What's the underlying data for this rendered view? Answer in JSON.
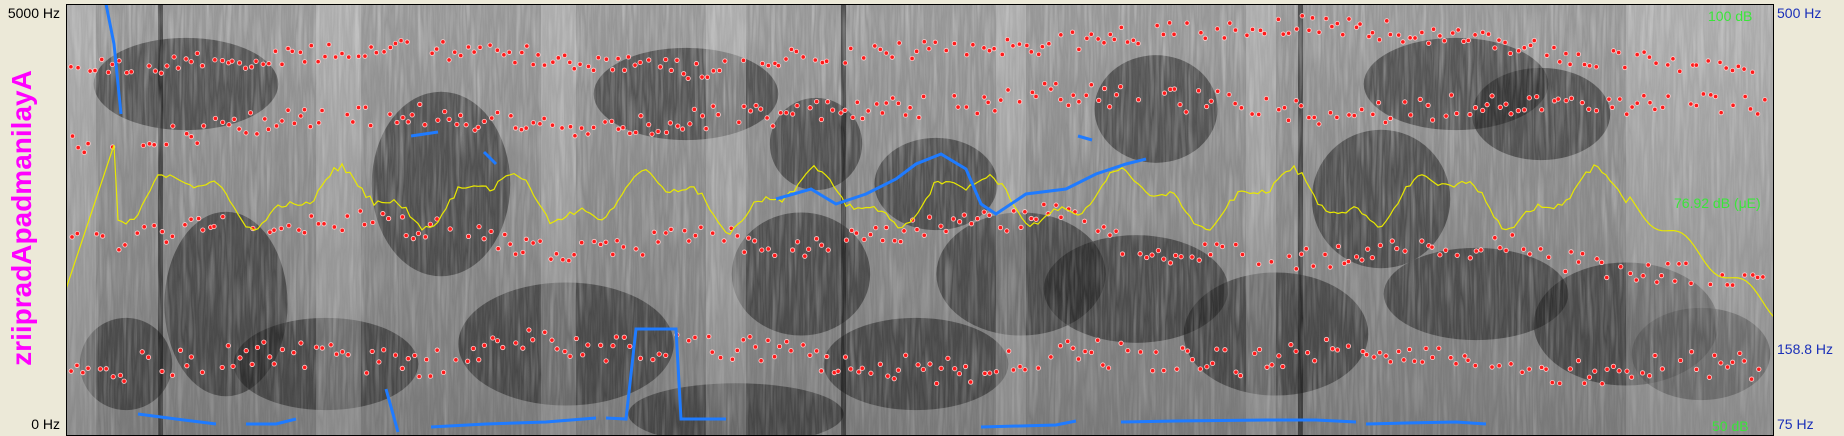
{
  "tier": {
    "word": "zriipradApadmanilayA"
  },
  "axis_left": {
    "top": "5000 Hz",
    "bottom": "0 Hz"
  },
  "axis_right": {
    "top": "500 Hz",
    "mid": "158.8 Hz",
    "bottom": "75 Hz"
  },
  "intensity": {
    "top": "100 dB",
    "cursor": "76.92 dB (μE)",
    "bottom": "50 dB"
  },
  "colors": {
    "tier_text": "#ff00ff",
    "pitch": "#1f7bff",
    "intensity": "#e8e800",
    "formant": "#ff2020",
    "db_labels": "#39e639",
    "hz_labels": "#1a2fb8"
  }
}
